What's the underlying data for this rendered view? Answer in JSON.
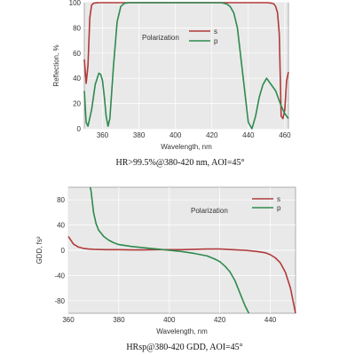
{
  "chart_data": [
    {
      "type": "line",
      "xlabel": "Wavelength, nm",
      "ylabel": "Reflection, %",
      "caption": "HR>99.5%@380-420 nm, AOI=45°",
      "xlim": [
        350,
        462
      ],
      "ylim": [
        0,
        100
      ],
      "xticks": [
        360,
        380,
        400,
        420,
        440,
        460
      ],
      "yticks": [
        0,
        20,
        40,
        60,
        80,
        100
      ],
      "grid": true,
      "legend": {
        "title": "Polarization",
        "placement": "upper-middle"
      },
      "series": [
        {
          "name": "s",
          "color": "#b03a3a",
          "x": [
            350,
            351,
            352,
            353,
            354,
            355,
            356,
            357,
            358,
            359,
            360,
            362,
            365,
            370,
            380,
            400,
            420,
            440,
            448,
            450,
            452,
            453,
            454,
            455,
            456,
            457,
            458,
            459,
            460,
            461,
            462
          ],
          "y": [
            55,
            36,
            50,
            88,
            98,
            99.5,
            99.8,
            99.9,
            100,
            100,
            100,
            100,
            100,
            100,
            100,
            100,
            100,
            100,
            100,
            100,
            99.8,
            99.5,
            99,
            97,
            92,
            75,
            10,
            8,
            15,
            38,
            45
          ]
        },
        {
          "name": "p",
          "color": "#2e8a4e",
          "x": [
            350,
            351,
            352,
            354,
            356,
            358,
            359,
            360,
            361,
            362,
            363,
            364,
            366,
            368,
            370,
            372,
            375,
            378,
            380,
            400,
            420,
            425,
            428,
            430,
            432,
            434,
            436,
            438,
            440,
            442,
            444,
            446,
            448,
            450,
            452,
            455,
            458,
            460,
            462
          ],
          "y": [
            30,
            5,
            2,
            15,
            35,
            44,
            43,
            38,
            25,
            10,
            2,
            8,
            50,
            85,
            97,
            99.5,
            100,
            100,
            100,
            100,
            100,
            100,
            99,
            97,
            92,
            80,
            55,
            30,
            5,
            0,
            10,
            25,
            35,
            40,
            36,
            30,
            18,
            12,
            8
          ]
        }
      ]
    },
    {
      "type": "line",
      "xlabel": "Wavelength, nm",
      "ylabel": "GDD, fs²",
      "caption": "HRsp@380-420 GDD, AOI=45°",
      "xlim": [
        360,
        450
      ],
      "ylim": [
        -100,
        100
      ],
      "xticks": [
        360,
        380,
        400,
        420,
        440
      ],
      "yticks": [
        80,
        40,
        0,
        -40,
        -80
      ],
      "grid": true,
      "legend": {
        "title": "Polarization",
        "placement": "upper-right"
      },
      "series": [
        {
          "name": "s",
          "color": "#b03a3a",
          "x": [
            360,
            362,
            364,
            366,
            368,
            370,
            375,
            380,
            385,
            390,
            395,
            400,
            405,
            410,
            415,
            420,
            425,
            430,
            435,
            438,
            440,
            442,
            444,
            446,
            448,
            450
          ],
          "y": [
            22,
            10,
            5,
            3,
            2,
            1.5,
            1,
            1,
            0.5,
            0.5,
            1,
            1,
            1,
            1.5,
            2,
            2,
            1,
            0,
            -2,
            -4,
            -7,
            -12,
            -20,
            -35,
            -60,
            -100
          ]
        },
        {
          "name": "p",
          "color": "#2e8a4e",
          "x": [
            368.7,
            369,
            370,
            371,
            372,
            374,
            376,
            378,
            380,
            385,
            390,
            395,
            400,
            405,
            410,
            415,
            418,
            420,
            422,
            424,
            426,
            428,
            430,
            431.5
          ],
          "y": [
            100,
            94,
            60,
            42,
            32,
            22,
            16,
            12,
            9,
            6,
            4,
            2,
            0,
            -2,
            -5,
            -9,
            -14,
            -18,
            -25,
            -34,
            -48,
            -68,
            -88,
            -100
          ]
        }
      ]
    }
  ]
}
